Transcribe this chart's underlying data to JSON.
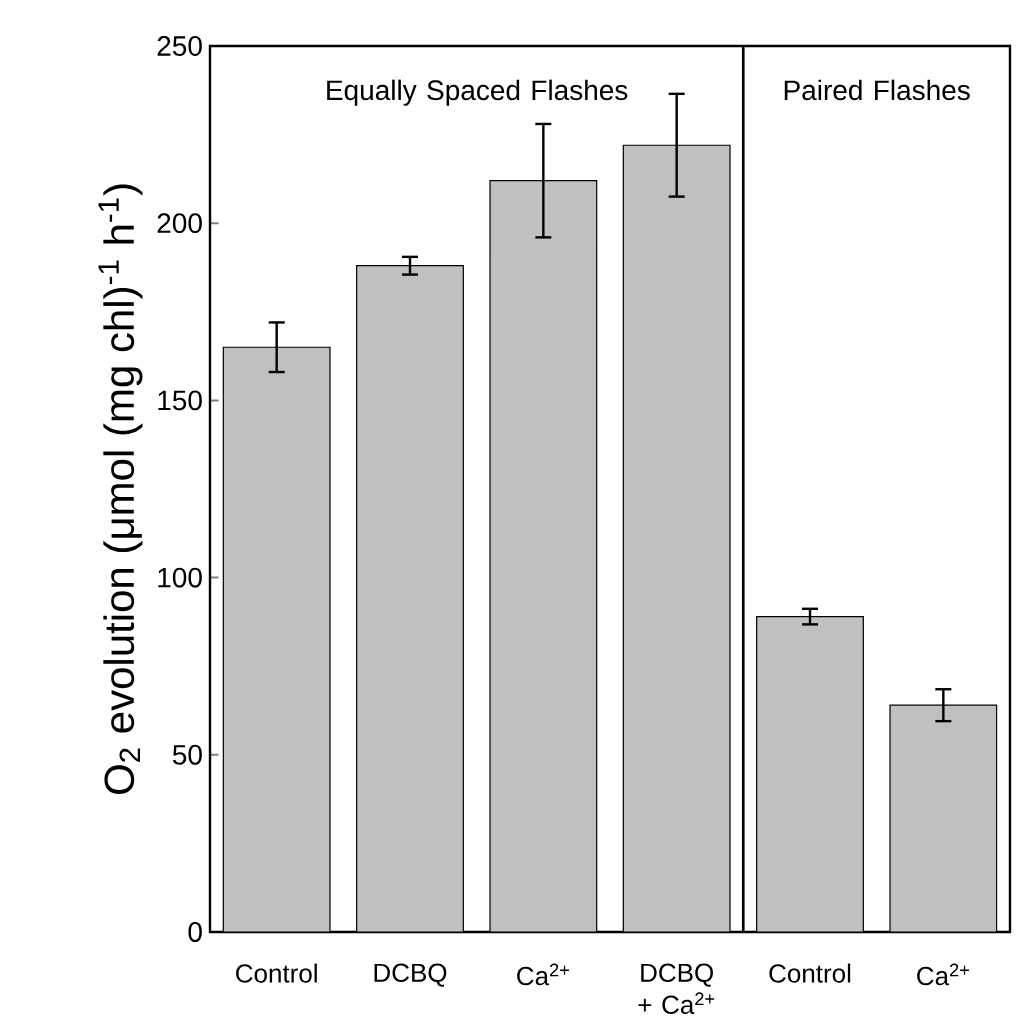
{
  "chart_data": {
    "type": "bar",
    "ylabel": "O$_{2}$ evolution (μmol (mg chl)$^{-1}$ h$^{-1}$)",
    "categories": [
      "Control",
      "DCBQ",
      "Ca$^{2+}$",
      "DCBQ + Ca$^{2+}$",
      "Control",
      "Ca$^{2+}$"
    ],
    "values": [
      165,
      188,
      212,
      222,
      89,
      64
    ],
    "errors": [
      7,
      2.5,
      16,
      14.5,
      2.2,
      4.5
    ],
    "color": "#c0c0c0",
    "ylim": [
      0,
      250
    ],
    "yticks": [
      0,
      50,
      100,
      150,
      200,
      250
    ],
    "annotations": [
      "Equally Spaced Flashes",
      "Paired Flashes"
    ],
    "grid": false
  }
}
